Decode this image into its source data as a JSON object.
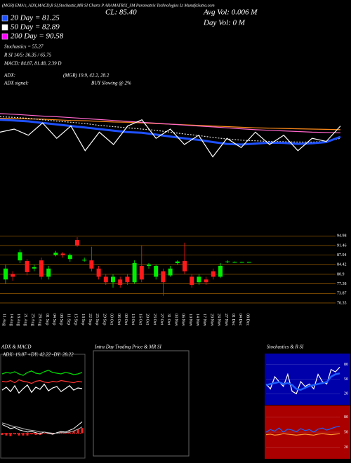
{
  "header": "(MGR) EMA's, ADX,MACD,R SI,Stochastic,MR SI Charts P ARAMATRIX_SM Paramatrix Technologies Lt MunafaSutra.com",
  "close_label": "CL: 85.40",
  "avg_vol": "Avg Vol: 0.006  M",
  "day_vol": "Day Vol: 0  M",
  "legend": [
    {
      "text": "20 Day = 81.25",
      "color": "#1e50ff"
    },
    {
      "text": "50 Day = 82.89",
      "color": "#ffffff"
    },
    {
      "text": "200 Day = 90.58",
      "color": "#ff00ff"
    }
  ],
  "stats": [
    "Stochastics = 55.27",
    "R  SI 14/5: 36.35 / 65.75",
    "MACD: 84.87, 81.48, 2.39  D"
  ],
  "adx": [
    "ADX:",
    "(MGR) 19.9, 42.2, 28.2"
  ],
  "adx_signal": [
    "ADX  signal:",
    "BUY Slowing @ 2%"
  ],
  "chart_data": [
    {
      "type": "line",
      "ylim": [
        70,
        95
      ],
      "series": [
        {
          "color": "#ff8c1a",
          "values": [
            88.5,
            88.4,
            88.3,
            88.2,
            88,
            87.8,
            87.7,
            87.5,
            87.3,
            87.2,
            87,
            86.8,
            86.6,
            86.4,
            86.2,
            86,
            85.8,
            85.6,
            85.4,
            85.3,
            85.2,
            85.1,
            85,
            84.9,
            84.8
          ]
        },
        {
          "color": "#ff66cc",
          "values": [
            90,
            89.8,
            89.5,
            89.2,
            89,
            88.7,
            88.4,
            88.1,
            87.8,
            87.5,
            87.2,
            86.9,
            86.6,
            86.3,
            86,
            85.7,
            85.4,
            85.1,
            84.8,
            84.6,
            84.4,
            84.2,
            84,
            83.9,
            83.8
          ]
        },
        {
          "color": "#dddddd",
          "values": [
            89,
            88.8,
            88.5,
            88,
            87.6,
            87.2,
            86.8,
            86.2,
            85.8,
            85.4,
            85,
            84.6,
            84,
            83.4,
            82.9,
            82.3,
            81.8,
            81.4,
            81.2,
            81,
            80.9,
            80.8,
            80.8,
            81,
            82
          ]
        },
        {
          "color": "#1e50ff",
          "values": [
            88,
            87.8,
            87.5,
            87,
            86.5,
            86,
            85.5,
            85,
            84.5,
            84,
            83.8,
            83.2,
            82.6,
            82,
            81.5,
            80.8,
            80.2,
            80,
            80.3,
            80.6,
            80.5,
            80.2,
            80.4,
            80.8,
            82.5
          ]
        },
        {
          "color": "#ffffff",
          "values": [
            84,
            85,
            83,
            87,
            82,
            86,
            78,
            84,
            80,
            86,
            88,
            82,
            85,
            80,
            83,
            76,
            82,
            79,
            84,
            80,
            83,
            78,
            82,
            81,
            86
          ]
        }
      ]
    },
    {
      "type": "candlestick",
      "categories": [
        "11 Aug",
        "14 Aug",
        "18 Aug",
        "21 Aug",
        "25 Aug",
        "28 Aug",
        "01 Sep",
        "04 Sep",
        "08 Sep",
        "11 Sep",
        "15 Sep",
        "18 Sep",
        "22 Sep",
        "25 Sep",
        "29 Sep",
        "03 Oct",
        "06 Oct",
        "09 Oct",
        "13 Oct",
        "16 Oct",
        "20 Oct",
        "23 Oct",
        "27 Oct",
        "31 Oct",
        "03 Nov",
        "06 Nov",
        "10 Nov",
        "14 Nov",
        "17 Nov",
        "20 Nov",
        "24 Nov",
        "27 Nov",
        "01 Dec",
        "04 Dec",
        "08 Dec"
      ],
      "open": [
        79,
        81,
        86,
        85.8,
        83,
        86,
        80,
        88,
        88.5,
        86.5,
        93.5,
        86,
        86,
        83,
        80,
        78,
        79,
        80,
        78,
        84,
        84,
        80,
        82,
        80.5,
        85,
        85.8,
        80,
        78,
        79,
        82,
        80,
        85.4,
        85.4,
        85.4,
        85.4
      ],
      "high": [
        84.5,
        82,
        90,
        86.5,
        84.5,
        87,
        84,
        89.5,
        89,
        88.5,
        94.5,
        87,
        91,
        84,
        81,
        81,
        80,
        81,
        86,
        91.5,
        85,
        84.5,
        83,
        84,
        86,
        92.5,
        81,
        81,
        80,
        83,
        85,
        86,
        85.6,
        85.5,
        85.5
      ],
      "low": [
        77.5,
        78.5,
        85,
        80.5,
        82,
        79,
        79,
        87.5,
        87,
        85.5,
        91,
        85.5,
        82,
        79,
        77,
        76,
        76,
        77,
        77.5,
        78,
        83,
        79,
        73,
        80,
        84.5,
        81,
        76,
        77,
        77,
        79,
        79.5,
        85,
        85.2,
        85.3,
        85.3
      ],
      "close": [
        83,
        80,
        89,
        81.7,
        83.5,
        80,
        83,
        88.8,
        88,
        88,
        91.5,
        86.2,
        83,
        80,
        78,
        80,
        77,
        78,
        85,
        79,
        84.5,
        84,
        78,
        83,
        85.6,
        82,
        77,
        80,
        78,
        80,
        84,
        85.6,
        85.4,
        85.4,
        85.4
      ],
      "up_color": "#00ee00",
      "down_color": "#ff1a1a",
      "grid_color": "#b86e00",
      "ylim": [
        67,
        95
      ],
      "yticks": [
        94.98,
        91.46,
        87.94,
        84.42,
        80.9,
        77.38,
        73.87,
        70.35
      ]
    },
    {
      "type": "line",
      "title": "ADX  & MACD",
      "subtitle": "ADX: 19.87 +DY: 42.22 -DY: 28.22",
      "ylim": [
        0,
        60
      ],
      "series": [
        {
          "color": "#00dd00",
          "values": [
            40,
            42,
            41,
            43,
            40,
            38,
            42,
            44,
            41,
            40,
            43,
            45,
            42,
            41,
            40,
            42,
            41,
            39,
            40,
            42
          ]
        },
        {
          "color": "#ff3333",
          "values": [
            30,
            29,
            31,
            28,
            32,
            30,
            29,
            27,
            30,
            31,
            29,
            28,
            30,
            29,
            31,
            30,
            29,
            28,
            30,
            29
          ]
        },
        {
          "color": "#ffffff",
          "values": [
            18,
            22,
            16,
            24,
            14,
            20,
            25,
            15,
            22,
            19,
            26,
            17,
            21,
            23,
            16,
            20,
            24,
            18,
            21,
            20
          ]
        }
      ]
    },
    {
      "type": "macd",
      "ylim": [
        -4,
        4
      ],
      "series": [
        {
          "color": "#ffffff",
          "values": [
            1.5,
            1.2,
            0.8,
            1.0,
            0.6,
            0.4,
            0.2,
            0.3,
            0.1,
            -0.1,
            0.2,
            0.0,
            -0.2,
            0.1,
            0.3,
            0.2,
            0.5,
            0.8,
            1.4,
            2.0
          ]
        },
        {
          "color": "#bbbbbb",
          "values": [
            1.8,
            1.6,
            1.3,
            1.2,
            1.0,
            0.8,
            0.6,
            0.5,
            0.4,
            0.2,
            0.2,
            0.1,
            0.0,
            0.0,
            0.1,
            0.1,
            0.2,
            0.4,
            0.7,
            1.1
          ]
        }
      ],
      "histogram": {
        "color": "#ff2222",
        "values": [
          -0.3,
          -0.4,
          -0.5,
          -0.2,
          -0.4,
          -0.4,
          -0.4,
          -0.2,
          -0.3,
          -0.3,
          0.0,
          -0.1,
          -0.2,
          0.1,
          0.2,
          0.1,
          0.3,
          0.4,
          0.7,
          0.9
        ]
      }
    },
    {
      "type": "blank",
      "title": "Intra  Day Trading Price  & MR    SI"
    },
    {
      "type": "line",
      "title": "Stochastics & R    SI",
      "background": "#0000aa",
      "ylim": [
        0,
        100
      ],
      "yticks": [
        20,
        50,
        80
      ],
      "series": [
        {
          "color": "#ffffff",
          "values": [
            40,
            30,
            55,
            45,
            35,
            60,
            25,
            20,
            45,
            35,
            40,
            30,
            60,
            45,
            40,
            70,
            65,
            75
          ]
        },
        {
          "color": "#1e60ff",
          "values": [
            38,
            40,
            42,
            44,
            40,
            42,
            38,
            30,
            28,
            32,
            36,
            38,
            40,
            42,
            44,
            55,
            60,
            62
          ]
        }
      ]
    },
    {
      "type": "line",
      "background": "#aa0000",
      "ylim": [
        0,
        100
      ],
      "yticks": [
        20,
        50,
        80
      ],
      "series": [
        {
          "color": "#ff9933",
          "values": [
            45,
            46,
            44,
            45,
            47,
            46,
            45,
            44,
            45,
            46,
            45,
            44,
            46,
            47,
            46,
            45,
            46,
            47
          ]
        },
        {
          "color": "#1e60ff",
          "values": [
            50,
            55,
            52,
            58,
            50,
            56,
            54,
            51,
            57,
            53,
            55,
            50,
            56,
            58,
            54,
            57,
            60,
            62
          ]
        }
      ]
    }
  ]
}
